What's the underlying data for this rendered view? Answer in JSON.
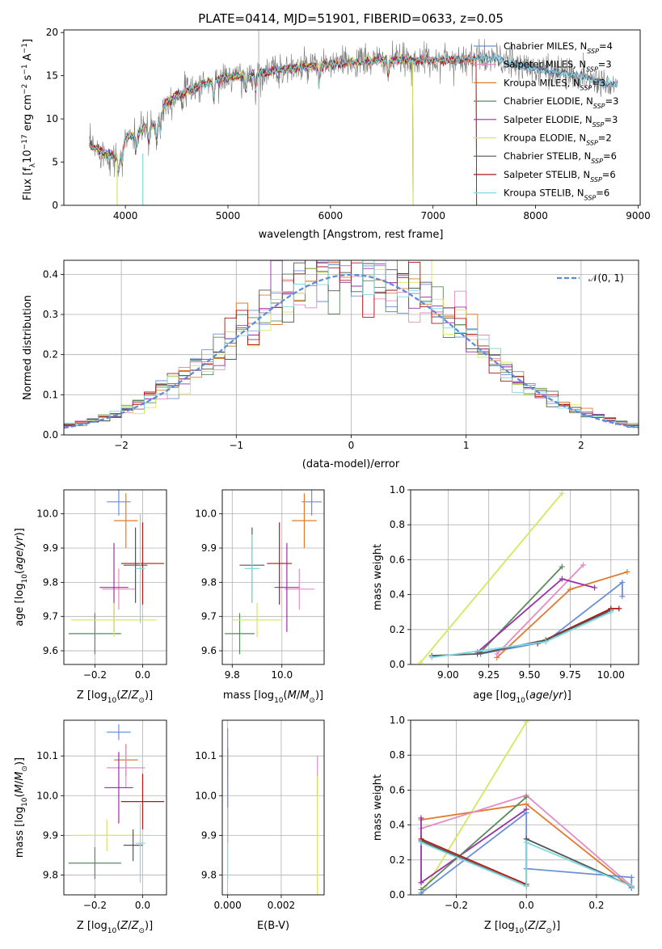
{
  "colors": {
    "chabrier_miles": "#6a8fd9",
    "salpeter_miles": "#e58bc4",
    "kroupa_miles": "#e07b2e",
    "chabrier_elodie": "#5a8a5e",
    "salpeter_elodie": "#9b2fa8",
    "kroupa_elodie": "#d4e85a",
    "chabrier_stelib": "#555555",
    "salpeter_stelib": "#b01818",
    "kroupa_stelib": "#7fd9e0",
    "normal": "#5a8ad9"
  },
  "chart_data": [
    {
      "id": "spectrum",
      "type": "line",
      "title": "PLATE=0414, MJD=51901, FIBERID=0633, z=0.05",
      "xlabel": "wavelength [Angstrom, rest frame]",
      "ylabel": "Flux [f_λ10^-17 erg cm^-2 s^-1 A^-1]",
      "xlim": [
        3400,
        9020
      ],
      "ylim": [
        0,
        20.3
      ],
      "xticks": [
        4000,
        5000,
        6000,
        7000,
        8000,
        9000
      ],
      "yticks": [
        0,
        5,
        10,
        15,
        20
      ],
      "legend_position": "upper-right",
      "series": [
        {
          "key": "chabrier_miles",
          "sub": "SSP",
          "n": "4",
          "color": "#6a8fd9",
          "name": "Chabrier MILES",
          "wmax": 8800
        },
        {
          "key": "salpeter_miles",
          "sub": "SSP",
          "n": "3",
          "color": "#e58bc4",
          "name": "Salpeter MILES",
          "wmax": 7420
        },
        {
          "key": "kroupa_miles",
          "sub": "SSP",
          "n": "3",
          "color": "#e07b2e",
          "name": "Kroupa MILES",
          "wmax": 7420
        },
        {
          "key": "chabrier_elodie",
          "sub": "SSP",
          "n": "3",
          "color": "#5a8a5e",
          "name": "Chabrier ELODIE",
          "wmax": 6800
        },
        {
          "key": "salpeter_elodie",
          "sub": "SSP",
          "n": "3",
          "color": "#9b2fa8",
          "name": "Salpeter ELODIE",
          "wmax": 6800
        },
        {
          "key": "kroupa_elodie",
          "sub": "SSP",
          "n": "2",
          "color": "#d4e85a",
          "name": "Kroupa ELODIE",
          "wmax": 6800
        },
        {
          "key": "chabrier_stelib",
          "sub": "SSP",
          "n": "6",
          "color": "#555555",
          "name": "Chabrier STELIB",
          "wmax": 8800
        },
        {
          "key": "salpeter_stelib",
          "sub": "SSP",
          "n": "6",
          "color": "#b01818",
          "name": "Salpeter STELIB",
          "wmax": 7420
        },
        {
          "key": "kroupa_stelib",
          "sub": "SSP",
          "n": "6",
          "color": "#7fd9e0",
          "name": "Kroupa STELIB",
          "wmax": 8800
        }
      ],
      "continuum": [
        [
          3650,
          7.0
        ],
        [
          3800,
          6.0
        ],
        [
          3900,
          5.5
        ],
        [
          3950,
          5.8
        ],
        [
          4000,
          7.8
        ],
        [
          4100,
          8.3
        ],
        [
          4200,
          9.0
        ],
        [
          4300,
          9.5
        ],
        [
          4400,
          12.0
        ],
        [
          4600,
          13.2
        ],
        [
          4800,
          14.2
        ],
        [
          5000,
          14.8
        ],
        [
          5200,
          15.0
        ],
        [
          5400,
          15.5
        ],
        [
          5600,
          15.8
        ],
        [
          5800,
          16.0
        ],
        [
          6000,
          16.3
        ],
        [
          6200,
          16.5
        ],
        [
          6400,
          16.7
        ],
        [
          6600,
          16.8
        ],
        [
          6800,
          16.8
        ],
        [
          7000,
          16.8
        ],
        [
          7200,
          16.9
        ],
        [
          7400,
          17.0
        ],
        [
          7600,
          17.0
        ],
        [
          7800,
          16.3
        ],
        [
          8000,
          15.8
        ],
        [
          8200,
          15.5
        ],
        [
          8400,
          15.0
        ],
        [
          8600,
          14.4
        ],
        [
          8800,
          14.0
        ]
      ]
    },
    {
      "id": "residuals",
      "type": "step",
      "xlabel": "(data-model)/error",
      "ylabel": "Normed distribution",
      "xlim": [
        -2.5,
        2.5
      ],
      "ylim": [
        0,
        0.435
      ],
      "xticks": [
        -2,
        -1,
        0,
        1,
        2
      ],
      "yticks": [
        0.0,
        0.1,
        0.2,
        0.3,
        0.4
      ],
      "legend": "𝒩(0, 1)",
      "legend_position": "upper-right",
      "bin_width": 0.1
    },
    {
      "id": "z-age",
      "type": "errorbar",
      "xlabel": "Z [log10(Z/Z⊙)]",
      "ylabel": "age [log10(age/yr)]",
      "xlim": [
        -0.33,
        0.1
      ],
      "ylim": [
        9.56,
        10.07
      ],
      "xticks": [
        -0.2,
        0.0
      ],
      "yticks": [
        9.6,
        9.7,
        9.8,
        9.9,
        10.0
      ],
      "points": [
        {
          "s": "chabrier_miles",
          "x": -0.1,
          "xe": 0.05,
          "y": 10.035,
          "ye": 0.04
        },
        {
          "s": "kroupa_miles",
          "x": -0.07,
          "xe": 0.05,
          "y": 9.98,
          "ye": 0.08
        },
        {
          "s": "salpeter_miles",
          "x": -0.1,
          "xe": 0.07,
          "y": 9.78,
          "ye": 0.06
        },
        {
          "s": "chabrier_elodie",
          "x": -0.2,
          "xe": 0.11,
          "y": 9.65,
          "ye": 0.06
        },
        {
          "s": "salpeter_elodie",
          "x": -0.12,
          "xe": 0.06,
          "y": 9.785,
          "ye": 0.13
        },
        {
          "s": "kroupa_elodie",
          "x": -0.12,
          "xe": 0.18,
          "y": 9.69,
          "ye": 0.05
        },
        {
          "s": "chabrier_stelib",
          "x": -0.03,
          "xe": 0.05,
          "y": 9.85,
          "ye": 0.11
        },
        {
          "s": "salpeter_stelib",
          "x": 0.0,
          "xe": 0.09,
          "y": 9.855,
          "ye": 0.12
        },
        {
          "s": "kroupa_stelib",
          "x": -0.01,
          "xe": 0.02,
          "y": 9.84,
          "ye": 0.16
        }
      ]
    },
    {
      "id": "mass-age",
      "type": "errorbar",
      "xlabel": "mass [log10(M/M⊙)]",
      "xlim": [
        9.76,
        10.17
      ],
      "ylim": [
        9.56,
        10.07
      ],
      "xticks": [
        9.8,
        10.0
      ],
      "yticks": [
        9.6,
        9.7,
        9.8,
        9.9,
        10.0
      ],
      "points": [
        {
          "s": "chabrier_miles",
          "x": 10.12,
          "xe": 0.04,
          "y": 10.035,
          "ye": 0.04
        },
        {
          "s": "kroupa_miles",
          "x": 10.09,
          "xe": 0.05,
          "y": 9.98,
          "ye": 0.08
        },
        {
          "s": "salpeter_miles",
          "x": 10.07,
          "xe": 0.06,
          "y": 9.78,
          "ye": 0.06
        },
        {
          "s": "chabrier_elodie",
          "x": 9.83,
          "xe": 0.06,
          "y": 9.65,
          "ye": 0.06
        },
        {
          "s": "salpeter_elodie",
          "x": 10.02,
          "xe": 0.05,
          "y": 9.785,
          "ye": 0.13
        },
        {
          "s": "kroupa_elodie",
          "x": 9.9,
          "xe": 0.1,
          "y": 9.69,
          "ye": 0.05
        },
        {
          "s": "chabrier_stelib",
          "x": 9.88,
          "xe": 0.05,
          "y": 9.85,
          "ye": 0.11
        },
        {
          "s": "salpeter_stelib",
          "x": 9.99,
          "xe": 0.05,
          "y": 9.855,
          "ye": 0.12
        },
        {
          "s": "kroupa_stelib",
          "x": 9.88,
          "xe": 0.03,
          "y": 9.84,
          "ye": 0.1
        }
      ]
    },
    {
      "id": "age-weight",
      "type": "line",
      "xlabel": "age [log10(age/yr)]",
      "ylabel": "mass weight",
      "xlim": [
        8.77,
        10.17
      ],
      "ylim": [
        0,
        1.0
      ],
      "xticks": [
        9.0,
        9.25,
        9.5,
        9.75,
        10.0
      ],
      "yticks": [
        0.0,
        0.2,
        0.4,
        0.6,
        0.8,
        1.0
      ],
      "lines": [
        {
          "s": "kroupa_elodie",
          "pts": [
            [
              8.83,
              0.01
            ],
            [
              9.7,
              0.98
            ]
          ]
        },
        {
          "s": "chabrier_miles",
          "pts": [
            [
              9.2,
              0.06
            ],
            [
              9.6,
              0.13
            ],
            [
              10.07,
              0.47
            ],
            [
              10.07,
              0.39
            ]
          ]
        },
        {
          "s": "kroupa_miles",
          "pts": [
            [
              9.3,
              0.04
            ],
            [
              9.75,
              0.43
            ],
            [
              10.1,
              0.53
            ]
          ]
        },
        {
          "s": "salpeter_miles",
          "pts": [
            [
              9.3,
              0.06
            ],
            [
              9.83,
              0.57
            ]
          ]
        },
        {
          "s": "chabrier_elodie",
          "pts": [
            [
              9.2,
              0.07
            ],
            [
              9.7,
              0.56
            ]
          ]
        },
        {
          "s": "salpeter_elodie",
          "pts": [
            [
              9.18,
              0.07
            ],
            [
              9.7,
              0.49
            ],
            [
              9.9,
              0.44
            ]
          ]
        },
        {
          "s": "salpeter_stelib",
          "pts": [
            [
              9.55,
              0.12
            ],
            [
              10.0,
              0.32
            ],
            [
              10.05,
              0.32
            ]
          ]
        },
        {
          "s": "chabrier_stelib",
          "pts": [
            [
              8.9,
              0.05
            ],
            [
              9.18,
              0.06
            ],
            [
              9.6,
              0.14
            ],
            [
              10.0,
              0.31
            ]
          ]
        },
        {
          "s": "kroupa_stelib",
          "pts": [
            [
              8.9,
              0.04
            ],
            [
              9.6,
              0.13
            ],
            [
              10.0,
              0.3
            ]
          ]
        }
      ]
    },
    {
      "id": "z-mass",
      "type": "errorbar",
      "xlabel": "Z [log10(Z/Z⊙)]",
      "ylabel": "mass [log10(M/M⊙)]",
      "xlim": [
        -0.33,
        0.1
      ],
      "ylim": [
        9.75,
        10.19
      ],
      "xticks": [
        -0.2,
        0.0
      ],
      "yticks": [
        9.8,
        9.9,
        10.0,
        10.1
      ],
      "points": [
        {
          "s": "chabrier_miles",
          "x": -0.1,
          "xe": 0.05,
          "y": 10.16,
          "ye": 0.02
        },
        {
          "s": "kroupa_miles",
          "x": -0.07,
          "xe": 0.05,
          "y": 10.09,
          "ye": 0.04
        },
        {
          "s": "salpeter_miles",
          "x": -0.07,
          "xe": 0.08,
          "y": 10.07,
          "ye": 0.05
        },
        {
          "s": "salpeter_elodie",
          "x": -0.1,
          "xe": 0.06,
          "y": 10.02,
          "ye": 0.09
        },
        {
          "s": "salpeter_stelib",
          "x": 0.0,
          "xe": 0.09,
          "y": 9.985,
          "ye": 0.07
        },
        {
          "s": "kroupa_elodie",
          "x": -0.15,
          "xe": 0.15,
          "y": 9.9,
          "ye": 0.04
        },
        {
          "s": "chabrier_stelib",
          "x": -0.04,
          "xe": 0.04,
          "y": 9.875,
          "ye": 0.04
        },
        {
          "s": "chabrier_elodie",
          "x": -0.2,
          "xe": 0.11,
          "y": 9.83,
          "ye": 0.04
        },
        {
          "s": "kroupa_stelib",
          "x": -0.01,
          "xe": 0.02,
          "y": 9.88,
          "ye": 0.1
        }
      ]
    },
    {
      "id": "ebv-mass",
      "type": "errorbar",
      "xlabel": "E(B-V)",
      "xlim": [
        -0.0002,
        0.0036
      ],
      "ylim": [
        9.75,
        10.19
      ],
      "xticks": [
        0.0,
        0.002
      ],
      "yticks": [
        9.8,
        9.9,
        10.0,
        10.1
      ],
      "points": [
        {
          "s": "salpeter_stelib",
          "x": 0.0,
          "xe": 0.0,
          "y": 10.0,
          "ye": 0.12
        },
        {
          "s": "kroupa_stelib",
          "x": 0.0,
          "xe": 0.0,
          "y": 9.92,
          "ye": 0.14
        },
        {
          "s": "chabrier_miles",
          "x": 0.0,
          "xe": 0.0,
          "y": 10.07,
          "ye": 0.1
        },
        {
          "s": "salpeter_miles",
          "x": 0.00335,
          "xe": 0.0,
          "y": 10.05,
          "ye": 0.05
        },
        {
          "s": "kroupa_elodie",
          "x": 0.00335,
          "xe": 0.0,
          "y": 9.9,
          "ye": 0.15
        }
      ]
    },
    {
      "id": "z-weight",
      "type": "line",
      "xlabel": "Z [log10(Z/Z⊙)]",
      "ylabel": "mass weight",
      "xlim": [
        -0.33,
        0.32
      ],
      "ylim": [
        0,
        1.0
      ],
      "xticks": [
        -0.2,
        0.0,
        0.2
      ],
      "yticks": [
        0.0,
        0.2,
        0.4,
        0.6,
        0.8,
        1.0
      ],
      "lines": [
        {
          "s": "kroupa_elodie",
          "pts": [
            [
              -0.3,
              0.0
            ],
            [
              0.0,
              0.99
            ]
          ]
        },
        {
          "s": "kroupa_miles",
          "pts": [
            [
              -0.3,
              0.43
            ],
            [
              0.0,
              0.52
            ],
            [
              0.3,
              0.04
            ]
          ]
        },
        {
          "s": "salpeter_miles",
          "pts": [
            [
              -0.3,
              0.38
            ],
            [
              0.0,
              0.57
            ],
            [
              0.3,
              0.05
            ]
          ]
        },
        {
          "s": "salpeter_elodie",
          "pts": [
            [
              -0.3,
              0.44
            ],
            [
              -0.3,
              0.07
            ],
            [
              0.0,
              0.49
            ]
          ]
        },
        {
          "s": "chabrier_elodie",
          "pts": [
            [
              -0.3,
              0.03
            ],
            [
              0.0,
              0.56
            ]
          ]
        },
        {
          "s": "chabrier_miles",
          "pts": [
            [
              -0.3,
              0.01
            ],
            [
              0.0,
              0.47
            ],
            [
              0.0,
              0.15
            ],
            [
              0.3,
              0.1
            ],
            [
              0.3,
              0.04
            ]
          ]
        },
        {
          "s": "salpeter_stelib",
          "pts": [
            [
              -0.3,
              0.32
            ],
            [
              0.0,
              0.06
            ]
          ]
        },
        {
          "s": "chabrier_stelib",
          "pts": [
            [
              -0.3,
              0.31
            ],
            [
              0.0,
              0.05
            ],
            [
              0.0,
              0.32
            ],
            [
              0.3,
              0.05
            ]
          ]
        },
        {
          "s": "kroupa_stelib",
          "pts": [
            [
              -0.3,
              0.3
            ],
            [
              0.0,
              0.05
            ],
            [
              0.0,
              0.3
            ],
            [
              0.3,
              0.05
            ]
          ]
        }
      ]
    }
  ]
}
